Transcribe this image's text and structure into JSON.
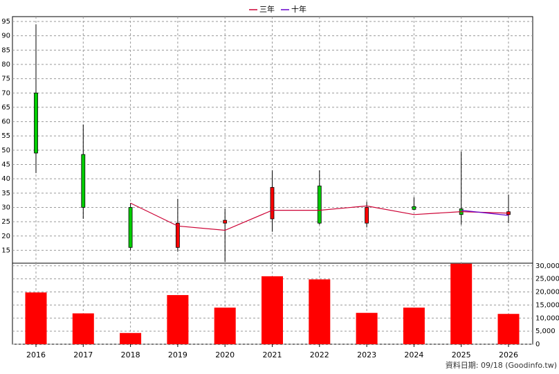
{
  "chart_data": [
    {
      "type": "candlestick",
      "categories": [
        "2016",
        "2017",
        "2018",
        "2019",
        "2020",
        "2021",
        "2022",
        "2023",
        "2024",
        "2025",
        "2026"
      ],
      "open": [
        70,
        48.5,
        30,
        16,
        24.5,
        26,
        37.5,
        24.5,
        30.3,
        29.5,
        27.5
      ],
      "close": [
        49,
        30,
        16,
        24.5,
        25.5,
        37,
        24.5,
        30,
        29.3,
        27.5,
        28.5
      ],
      "high": [
        94,
        59,
        31.5,
        33,
        29.5,
        43,
        43,
        32,
        33.5,
        49.5,
        34.5
      ],
      "low": [
        42,
        26,
        15,
        14.5,
        11,
        21.5,
        24,
        23,
        29,
        24,
        24.5
      ],
      "up_color": "#ff0000",
      "down_color": "#00cc00",
      "series": [
        {
          "name": "三年",
          "color": "#cc0033",
          "values": [
            null,
            null,
            31.5,
            23.5,
            22,
            29,
            29,
            30.5,
            27.5,
            28.5,
            28
          ]
        },
        {
          "name": "十年",
          "color": "#6600cc",
          "values": [
            null,
            null,
            null,
            null,
            null,
            null,
            null,
            null,
            null,
            29,
            27.2
          ]
        }
      ],
      "ylim": [
        10.5,
        96.7
      ],
      "yticks": [
        15,
        20,
        25,
        30,
        35,
        40,
        45,
        50,
        55,
        60,
        65,
        70,
        75,
        80,
        85,
        90,
        95
      ],
      "grid": true,
      "legend": "top"
    },
    {
      "type": "bar",
      "values": [
        19800,
        11800,
        4300,
        18800,
        14000,
        26000,
        24800,
        12000,
        14000,
        30800,
        11600
      ],
      "color": "#ff0000",
      "ylim": [
        0,
        31000
      ],
      "yticks": [
        0,
        {
          "value": 5000,
          "label": "5,000"
        },
        {
          "value": 10000,
          "label": "10,000"
        },
        {
          "value": 15000,
          "label": "15,000"
        },
        {
          "value": 20000,
          "label": "20,000"
        },
        {
          "value": 25000,
          "label": "25,000"
        },
        {
          "value": 30000,
          "label": "30,000"
        }
      ],
      "grid": true,
      "footnote": "資料日期: 09/18  (Goodinfo.tw)"
    }
  ]
}
